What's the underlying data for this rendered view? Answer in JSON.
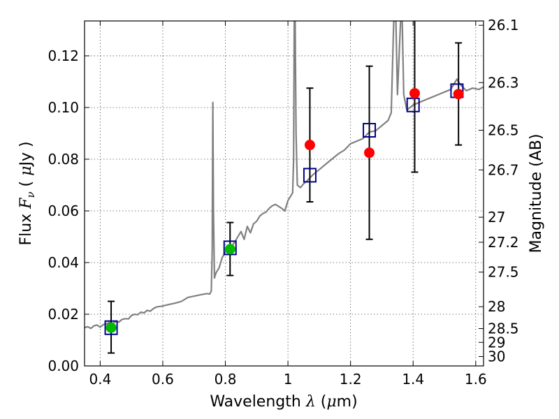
{
  "chart_data": {
    "type": "scatter",
    "title": "",
    "xlabel": {
      "prefix": "Wavelength  ",
      "symbol": "λ",
      "unit_open": " (",
      "unit_mu": "μ",
      "unit_rest": "m)"
    },
    "ylabel": {
      "prefix": "Flux  ",
      "symbol": "F",
      "sub": "ν",
      "unit_open": "  (  ",
      "unit_mu": "μ",
      "unit_rest": "Jy )"
    },
    "y2label": "Magnitude (AB)",
    "xlim": [
      0.35,
      1.625
    ],
    "ylim": [
      0.0,
      0.1335
    ],
    "grid": true,
    "x_ticks": [
      {
        "value": 0.4,
        "label": "0.4"
      },
      {
        "value": 0.6,
        "label": "0.6"
      },
      {
        "value": 0.8,
        "label": "0.8"
      },
      {
        "value": 1.0,
        "label": "1"
      },
      {
        "value": 1.2,
        "label": "1.2"
      },
      {
        "value": 1.4,
        "label": "1.4"
      },
      {
        "value": 1.6,
        "label": "1.6"
      }
    ],
    "y_ticks": [
      {
        "value": 0.0,
        "label": "0.00"
      },
      {
        "value": 0.02,
        "label": "0.02"
      },
      {
        "value": 0.04,
        "label": "0.04"
      },
      {
        "value": 0.06,
        "label": "0.06"
      },
      {
        "value": 0.08,
        "label": "0.08"
      },
      {
        "value": 0.1,
        "label": "0.10"
      },
      {
        "value": 0.12,
        "label": "0.12"
      }
    ],
    "mag_ticks": [
      {
        "value": 26.1,
        "label": "26.1"
      },
      {
        "value": 26.3,
        "label": "26.3"
      },
      {
        "value": 26.5,
        "label": "26.5"
      },
      {
        "value": 26.7,
        "label": "26.7"
      },
      {
        "value": 27.0,
        "label": "27"
      },
      {
        "value": 27.2,
        "label": "27.2"
      },
      {
        "value": 27.5,
        "label": "27.5"
      },
      {
        "value": 28.0,
        "label": "28"
      },
      {
        "value": 28.5,
        "label": "28.5"
      },
      {
        "value": 29.0,
        "label": "29"
      },
      {
        "value": 30.0,
        "label": "30"
      }
    ],
    "colors": {
      "spectrum": "#808080",
      "model_box": "#00008b",
      "observed_green": "#00bb00",
      "observed_red": "#ff0000",
      "errorbar": "#000000",
      "grid": "#555555"
    },
    "spectrum": [
      [
        0.35,
        0.0148
      ],
      [
        0.36,
        0.0152
      ],
      [
        0.37,
        0.0145
      ],
      [
        0.38,
        0.0155
      ],
      [
        0.39,
        0.0158
      ],
      [
        0.4,
        0.015
      ],
      [
        0.41,
        0.016
      ],
      [
        0.42,
        0.0163
      ],
      [
        0.43,
        0.0168
      ],
      [
        0.44,
        0.0165
      ],
      [
        0.45,
        0.0172
      ],
      [
        0.46,
        0.017
      ],
      [
        0.47,
        0.018
      ],
      [
        0.48,
        0.0183
      ],
      [
        0.49,
        0.0182
      ],
      [
        0.5,
        0.0195
      ],
      [
        0.51,
        0.02
      ],
      [
        0.52,
        0.0198
      ],
      [
        0.53,
        0.0208
      ],
      [
        0.54,
        0.0205
      ],
      [
        0.55,
        0.0215
      ],
      [
        0.56,
        0.0212
      ],
      [
        0.57,
        0.0222
      ],
      [
        0.58,
        0.0228
      ],
      [
        0.6,
        0.0232
      ],
      [
        0.62,
        0.0238
      ],
      [
        0.64,
        0.0243
      ],
      [
        0.66,
        0.025
      ],
      [
        0.68,
        0.0265
      ],
      [
        0.7,
        0.027
      ],
      [
        0.72,
        0.0275
      ],
      [
        0.74,
        0.028
      ],
      [
        0.75,
        0.0278
      ],
      [
        0.755,
        0.029
      ],
      [
        0.758,
        0.045
      ],
      [
        0.76,
        0.102
      ],
      [
        0.762,
        0.06
      ],
      [
        0.765,
        0.034
      ],
      [
        0.77,
        0.036
      ],
      [
        0.78,
        0.038
      ],
      [
        0.79,
        0.042
      ],
      [
        0.8,
        0.044
      ],
      [
        0.81,
        0.045
      ],
      [
        0.82,
        0.0462
      ],
      [
        0.83,
        0.048
      ],
      [
        0.84,
        0.05
      ],
      [
        0.85,
        0.052
      ],
      [
        0.86,
        0.049
      ],
      [
        0.87,
        0.054
      ],
      [
        0.88,
        0.0515
      ],
      [
        0.89,
        0.055
      ],
      [
        0.9,
        0.056
      ],
      [
        0.91,
        0.058
      ],
      [
        0.92,
        0.059
      ],
      [
        0.93,
        0.0595
      ],
      [
        0.94,
        0.061
      ],
      [
        0.95,
        0.062
      ],
      [
        0.96,
        0.0625
      ],
      [
        0.98,
        0.061
      ],
      [
        0.99,
        0.06
      ],
      [
        1.0,
        0.064
      ],
      [
        1.01,
        0.066
      ],
      [
        1.015,
        0.067
      ],
      [
        1.018,
        0.08
      ],
      [
        1.02,
        0.1335
      ],
      [
        1.023,
        0.1335
      ],
      [
        1.026,
        0.09
      ],
      [
        1.03,
        0.07
      ],
      [
        1.04,
        0.069
      ],
      [
        1.05,
        0.0705
      ],
      [
        1.06,
        0.0715
      ],
      [
        1.08,
        0.074
      ],
      [
        1.1,
        0.076
      ],
      [
        1.12,
        0.078
      ],
      [
        1.14,
        0.08
      ],
      [
        1.16,
        0.082
      ],
      [
        1.18,
        0.0835
      ],
      [
        1.2,
        0.086
      ],
      [
        1.22,
        0.087
      ],
      [
        1.24,
        0.088
      ],
      [
        1.26,
        0.0905
      ],
      [
        1.28,
        0.091
      ],
      [
        1.3,
        0.093
      ],
      [
        1.32,
        0.095
      ],
      [
        1.33,
        0.098
      ],
      [
        1.335,
        0.12
      ],
      [
        1.338,
        0.1335
      ],
      [
        1.345,
        0.1335
      ],
      [
        1.35,
        0.105
      ],
      [
        1.36,
        0.1335
      ],
      [
        1.365,
        0.1335
      ],
      [
        1.37,
        0.105
      ],
      [
        1.38,
        0.099
      ],
      [
        1.4,
        0.101
      ],
      [
        1.42,
        0.102
      ],
      [
        1.44,
        0.103
      ],
      [
        1.46,
        0.104
      ],
      [
        1.48,
        0.105
      ],
      [
        1.5,
        0.106
      ],
      [
        1.52,
        0.107
      ],
      [
        1.54,
        0.111
      ],
      [
        1.55,
        0.109
      ],
      [
        1.57,
        0.1065
      ],
      [
        1.59,
        0.1075
      ],
      [
        1.61,
        0.107
      ],
      [
        1.625,
        0.108
      ]
    ],
    "model_points": [
      {
        "x": 0.435,
        "y": 0.0148
      },
      {
        "x": 0.815,
        "y": 0.0457
      },
      {
        "x": 1.07,
        "y": 0.0738
      },
      {
        "x": 1.26,
        "y": 0.0912
      },
      {
        "x": 1.4,
        "y": 0.101
      },
      {
        "x": 1.54,
        "y": 0.1065
      }
    ],
    "observed_points": [
      {
        "x": 0.435,
        "y": 0.0148,
        "yerr_low": 0.005,
        "yerr_high": 0.025,
        "color": "green"
      },
      {
        "x": 0.815,
        "y": 0.0452,
        "yerr_low": 0.035,
        "yerr_high": 0.0555,
        "color": "green"
      },
      {
        "x": 1.07,
        "y": 0.0855,
        "yerr_low": 0.0635,
        "yerr_high": 0.1075,
        "color": "red"
      },
      {
        "x": 1.26,
        "y": 0.0825,
        "yerr_low": 0.049,
        "yerr_high": 0.116,
        "color": "red"
      },
      {
        "x": 1.405,
        "y": 0.1055,
        "yerr_low": 0.075,
        "yerr_high": 0.1335,
        "color": "red"
      },
      {
        "x": 1.545,
        "y": 0.1052,
        "yerr_low": 0.0855,
        "yerr_high": 0.125,
        "color": "red"
      }
    ]
  }
}
